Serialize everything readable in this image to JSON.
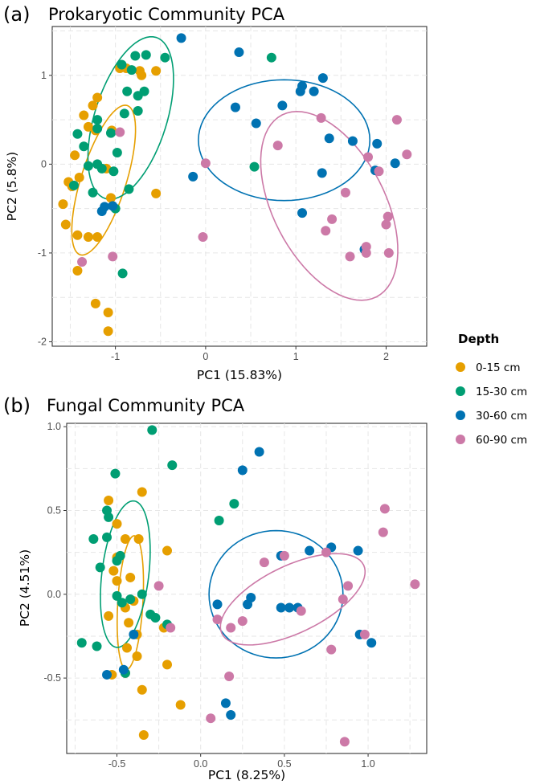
{
  "legend": {
    "title": "Depth",
    "items": [
      {
        "label": "0-15 cm",
        "color": "#E69F00"
      },
      {
        "label": "15-30 cm",
        "color": "#009E73"
      },
      {
        "label": "30-60 cm",
        "color": "#0072B2"
      },
      {
        "label": "60-90 cm",
        "color": "#CC79A7"
      }
    ]
  },
  "chart_data": [
    {
      "type": "scatter",
      "panel_label": "(a)",
      "title": "Prokaryotic Community PCA",
      "xlabel": "PC1 (15.83%)",
      "ylabel": "PC2 (5.8%)",
      "xlim": [
        -1.7,
        2.45
      ],
      "ylim": [
        -2.05,
        1.55
      ],
      "xticks": [
        -1,
        0,
        1,
        2
      ],
      "xtick_labels": [
        "-1",
        "0",
        "1",
        "2"
      ],
      "yticks": [
        -2,
        -1,
        0,
        1
      ],
      "ytick_labels": [
        "-2",
        "-1",
        "0",
        "1"
      ],
      "grid": true,
      "series": [
        {
          "name": "0-15 cm",
          "color": "#E69F00",
          "points": [
            [
              -0.95,
              1.08
            ],
            [
              -0.88,
              1.08
            ],
            [
              -0.73,
              1.05
            ],
            [
              -0.71,
              1.0
            ],
            [
              -0.55,
              1.05
            ],
            [
              -1.2,
              0.75
            ],
            [
              -1.25,
              0.66
            ],
            [
              -1.35,
              0.55
            ],
            [
              -1.3,
              0.42
            ],
            [
              -1.22,
              0.38
            ],
            [
              -1.04,
              0.38
            ],
            [
              -1.45,
              0.1
            ],
            [
              -1.52,
              -0.2
            ],
            [
              -1.48,
              -0.25
            ],
            [
              -1.4,
              -0.15
            ],
            [
              -1.58,
              -0.45
            ],
            [
              -1.55,
              -0.68
            ],
            [
              -1.42,
              -0.8
            ],
            [
              -1.3,
              -0.82
            ],
            [
              -1.2,
              -0.82
            ],
            [
              -1.1,
              -0.05
            ],
            [
              -1.05,
              -0.38
            ],
            [
              -0.55,
              -0.33
            ],
            [
              -1.42,
              -1.2
            ],
            [
              -1.22,
              -1.57
            ],
            [
              -1.08,
              -1.67
            ],
            [
              -1.08,
              -1.88
            ]
          ]
        },
        {
          "name": "15-30 cm",
          "color": "#009E73",
          "points": [
            [
              -0.93,
              1.12
            ],
            [
              -0.82,
              1.06
            ],
            [
              -0.66,
              1.23
            ],
            [
              -0.78,
              1.22
            ],
            [
              -0.45,
              1.2
            ],
            [
              0.73,
              1.2
            ],
            [
              -0.75,
              0.6
            ],
            [
              -0.9,
              0.57
            ],
            [
              -0.87,
              0.82
            ],
            [
              -0.75,
              0.77
            ],
            [
              -0.68,
              0.82
            ],
            [
              -1.2,
              0.5
            ],
            [
              -1.2,
              0.4
            ],
            [
              -1.42,
              0.34
            ],
            [
              -1.35,
              0.2
            ],
            [
              -1.05,
              0.35
            ],
            [
              -0.98,
              0.13
            ],
            [
              -1.3,
              -0.02
            ],
            [
              -1.2,
              0.0
            ],
            [
              -1.15,
              -0.05
            ],
            [
              -1.02,
              -0.08
            ],
            [
              -1.46,
              -0.24
            ],
            [
              -1.25,
              -0.32
            ],
            [
              -0.85,
              -0.28
            ],
            [
              -1.0,
              -0.5
            ],
            [
              -0.92,
              -1.23
            ],
            [
              0.54,
              -0.03
            ]
          ]
        },
        {
          "name": "30-60 cm",
          "color": "#0072B2",
          "points": [
            [
              -0.27,
              1.42
            ],
            [
              0.37,
              1.26
            ],
            [
              1.3,
              0.97
            ],
            [
              1.07,
              0.88
            ],
            [
              1.05,
              0.82
            ],
            [
              1.2,
              0.82
            ],
            [
              0.85,
              0.66
            ],
            [
              0.33,
              0.64
            ],
            [
              0.56,
              0.46
            ],
            [
              1.37,
              0.29
            ],
            [
              1.63,
              0.26
            ],
            [
              1.9,
              0.23
            ],
            [
              1.88,
              -0.07
            ],
            [
              2.1,
              0.01
            ],
            [
              1.29,
              -0.1
            ],
            [
              -0.14,
              -0.14
            ],
            [
              1.07,
              -0.55
            ],
            [
              1.76,
              -0.96
            ],
            [
              -1.03,
              -0.47
            ],
            [
              -1.12,
              -0.48
            ],
            [
              -1.15,
              -0.53
            ]
          ]
        },
        {
          "name": "60-90 cm",
          "color": "#CC79A7",
          "points": [
            [
              -0.95,
              0.36
            ],
            [
              0.8,
              0.21
            ],
            [
              1.28,
              0.52
            ],
            [
              2.12,
              0.5
            ],
            [
              2.23,
              0.11
            ],
            [
              1.8,
              0.08
            ],
            [
              1.92,
              -0.08
            ],
            [
              0.0,
              0.01
            ],
            [
              1.55,
              -0.32
            ],
            [
              1.4,
              -0.62
            ],
            [
              1.33,
              -0.75
            ],
            [
              -0.03,
              -0.82
            ],
            [
              2.02,
              -0.59
            ],
            [
              2.0,
              -0.68
            ],
            [
              1.78,
              -0.93
            ],
            [
              1.6,
              -1.04
            ],
            [
              1.78,
              -1.0
            ],
            [
              2.03,
              -1.0
            ],
            [
              -1.37,
              -1.1
            ],
            [
              -1.03,
              -1.04
            ]
          ]
        }
      ],
      "ellipses": [
        {
          "group": "0-15 cm",
          "color": "#E69F00",
          "center": [
            -1.13,
            -0.18
          ],
          "rx": 0.25,
          "ry": 0.88,
          "rot": -0.3
        },
        {
          "group": "15-30 cm",
          "color": "#009E73",
          "center": [
            -0.83,
            0.52
          ],
          "rx": 0.4,
          "ry": 0.95,
          "rot": -0.3
        },
        {
          "group": "30-60 cm",
          "color": "#0072B2",
          "center": [
            0.87,
            0.27
          ],
          "rx": 0.95,
          "ry": 0.68,
          "rot": 0
        },
        {
          "group": "60-90 cm",
          "color": "#CC79A7",
          "center": [
            1.37,
            -0.47
          ],
          "rx": 1.15,
          "ry": 0.62,
          "rot": -1.1
        }
      ]
    },
    {
      "type": "scatter",
      "panel_label": "(b)",
      "title": "Fungal Community PCA",
      "xlabel": "PC1 (8.25%)",
      "ylabel": "PC2 (4.51%)",
      "xlim": [
        -0.8,
        1.35
      ],
      "ylim": [
        -0.95,
        1.02
      ],
      "xticks": [
        -0.5,
        0.0,
        0.5,
        1.0
      ],
      "xtick_labels": [
        "-0.5",
        "0.0",
        "0.5",
        "1.0"
      ],
      "yticks": [
        -0.5,
        0.0,
        0.5,
        1.0
      ],
      "ytick_labels": [
        "-0.5",
        "0.0",
        "0.5",
        "1.0"
      ],
      "grid": true,
      "series": [
        {
          "name": "0-15 cm",
          "color": "#E69F00",
          "points": [
            [
              -0.55,
              0.56
            ],
            [
              -0.35,
              0.61
            ],
            [
              -0.5,
              0.42
            ],
            [
              -0.45,
              0.33
            ],
            [
              -0.37,
              0.33
            ],
            [
              -0.2,
              0.26
            ],
            [
              -0.5,
              0.22
            ],
            [
              -0.52,
              0.14
            ],
            [
              -0.5,
              0.08
            ],
            [
              -0.42,
              0.1
            ],
            [
              -0.4,
              -0.04
            ],
            [
              -0.45,
              -0.08
            ],
            [
              -0.55,
              -0.13
            ],
            [
              -0.43,
              -0.17
            ],
            [
              -0.38,
              -0.24
            ],
            [
              -0.44,
              -0.32
            ],
            [
              -0.38,
              -0.37
            ],
            [
              -0.45,
              -0.47
            ],
            [
              -0.53,
              -0.48
            ],
            [
              -0.35,
              -0.57
            ],
            [
              -0.2,
              -0.42
            ],
            [
              -0.12,
              -0.66
            ],
            [
              -0.34,
              -0.84
            ],
            [
              -0.22,
              -0.2
            ]
          ]
        },
        {
          "name": "15-30 cm",
          "color": "#009E73",
          "points": [
            [
              -0.29,
              0.98
            ],
            [
              -0.17,
              0.77
            ],
            [
              -0.51,
              0.72
            ],
            [
              -0.56,
              0.5
            ],
            [
              -0.55,
              0.46
            ],
            [
              -0.64,
              0.33
            ],
            [
              -0.56,
              0.34
            ],
            [
              -0.6,
              0.16
            ],
            [
              -0.5,
              0.2
            ],
            [
              -0.48,
              0.23
            ],
            [
              -0.5,
              -0.01
            ],
            [
              -0.47,
              -0.05
            ],
            [
              -0.42,
              -0.03
            ],
            [
              -0.35,
              0.0
            ],
            [
              -0.3,
              -0.12
            ],
            [
              -0.27,
              -0.14
            ],
            [
              -0.2,
              -0.18
            ],
            [
              -0.45,
              -0.47
            ],
            [
              -0.62,
              -0.31
            ],
            [
              -0.71,
              -0.29
            ],
            [
              0.2,
              0.54
            ],
            [
              0.11,
              0.44
            ]
          ]
        },
        {
          "name": "30-60 cm",
          "color": "#0072B2",
          "points": [
            [
              0.35,
              0.85
            ],
            [
              0.25,
              0.74
            ],
            [
              0.1,
              -0.06
            ],
            [
              0.28,
              -0.06
            ],
            [
              0.3,
              -0.02
            ],
            [
              0.48,
              -0.08
            ],
            [
              0.53,
              -0.08
            ],
            [
              0.58,
              -0.08
            ],
            [
              0.65,
              0.26
            ],
            [
              0.78,
              0.28
            ],
            [
              0.94,
              0.26
            ],
            [
              0.95,
              -0.24
            ],
            [
              1.02,
              -0.29
            ],
            [
              0.48,
              0.23
            ],
            [
              0.15,
              -0.65
            ],
            [
              0.18,
              -0.72
            ],
            [
              -0.4,
              -0.24
            ],
            [
              -0.46,
              -0.45
            ],
            [
              -0.56,
              -0.48
            ]
          ]
        },
        {
          "name": "60-90 cm",
          "color": "#CC79A7",
          "points": [
            [
              1.1,
              0.51
            ],
            [
              1.09,
              0.37
            ],
            [
              1.28,
              0.06
            ],
            [
              0.88,
              0.05
            ],
            [
              0.85,
              -0.03
            ],
            [
              0.6,
              -0.1
            ],
            [
              0.38,
              0.19
            ],
            [
              0.5,
              0.23
            ],
            [
              0.75,
              0.25
            ],
            [
              0.18,
              -0.2
            ],
            [
              0.25,
              -0.16
            ],
            [
              0.17,
              -0.49
            ],
            [
              0.1,
              -0.15
            ],
            [
              0.06,
              -0.74
            ],
            [
              0.78,
              -0.33
            ],
            [
              0.98,
              -0.24
            ],
            [
              0.86,
              -0.88
            ],
            [
              -0.25,
              0.05
            ],
            [
              -0.18,
              -0.2
            ]
          ]
        }
      ],
      "ellipses": [
        {
          "group": "0-15 cm",
          "color": "#E69F00",
          "center": [
            -0.42,
            -0.05
          ],
          "rx": 0.075,
          "ry": 0.4,
          "rot": -0.06
        },
        {
          "group": "15-30 cm",
          "color": "#009E73",
          "center": [
            -0.45,
            0.12
          ],
          "rx": 0.14,
          "ry": 0.44,
          "rot": -0.12
        },
        {
          "group": "30-60 cm",
          "color": "#0072B2",
          "center": [
            0.45,
            0.0
          ],
          "rx": 0.4,
          "ry": 0.38,
          "rot": 0
        },
        {
          "group": "60-90 cm",
          "color": "#CC79A7",
          "center": [
            0.55,
            -0.03
          ],
          "rx": 0.47,
          "ry": 0.2,
          "rot": 0.45
        }
      ]
    }
  ]
}
